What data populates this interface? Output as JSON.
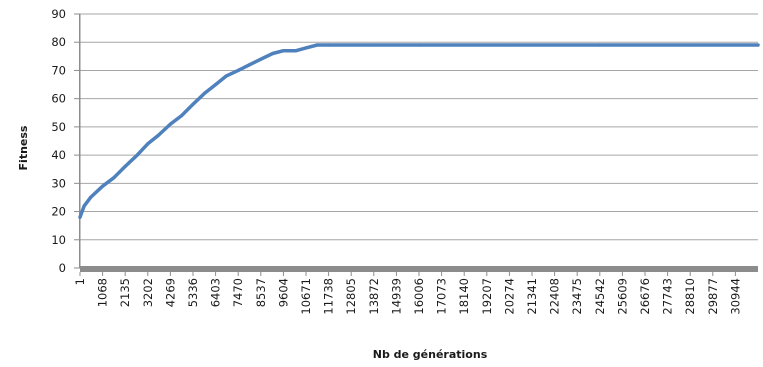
{
  "chart_data": {
    "type": "line",
    "xlabel": "Nb de générations",
    "ylabel": "Fitness",
    "ylim": [
      0,
      90
    ],
    "yticks": [
      "0",
      "10",
      "20",
      "30",
      "40",
      "50",
      "60",
      "70",
      "80",
      "90"
    ],
    "xlim": [
      1,
      32011
    ],
    "xticks": [
      "1",
      "1068",
      "2135",
      "3202",
      "4269",
      "5336",
      "6403",
      "7470",
      "8537",
      "9604",
      "10671",
      "11738",
      "12805",
      "13872",
      "14939",
      "16006",
      "17073",
      "18140",
      "19207",
      "20274",
      "21341",
      "22408",
      "23475",
      "24542",
      "25609",
      "26676",
      "27743",
      "28810",
      "29877",
      "30944"
    ],
    "grid": true,
    "legend": "none",
    "series": [
      {
        "color": "#4f81bd",
        "x": [
          1,
          200,
          500,
          1068,
          1600,
          2135,
          2700,
          3202,
          3700,
          4269,
          4800,
          5336,
          5900,
          6403,
          6900,
          7470,
          8000,
          8537,
          9100,
          9604,
          10200,
          10671,
          11200,
          11738,
          13872,
          16006,
          20274,
          24542,
          28810,
          32011
        ],
        "y": [
          18,
          22,
          25,
          29,
          32,
          36,
          40,
          44,
          47,
          51,
          54,
          58,
          62,
          65,
          68,
          70,
          72,
          74,
          76,
          77,
          77,
          78,
          79,
          79,
          79,
          79,
          79,
          79,
          79,
          79
        ]
      }
    ]
  }
}
